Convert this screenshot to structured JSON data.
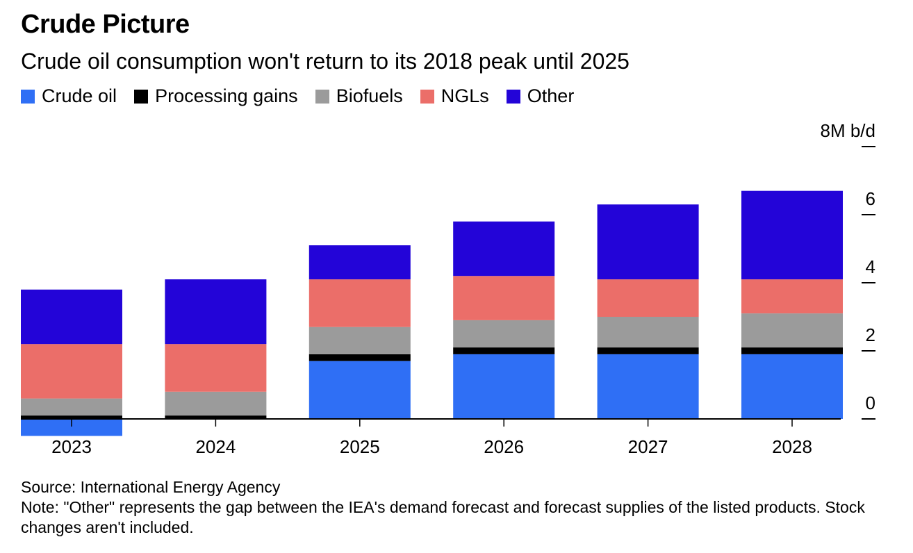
{
  "header": {
    "title": "Crude Picture",
    "subtitle": "Crude oil consumption won't return to its 2018 peak until 2025"
  },
  "legend": [
    {
      "label": "Crude oil",
      "color": "#2f6ff5"
    },
    {
      "label": "Processing gains",
      "color": "#000000"
    },
    {
      "label": "Biofuels",
      "color": "#9b9b9b"
    },
    {
      "label": "NGLs",
      "color": "#eb6e69"
    },
    {
      "label": "Other",
      "color": "#2304d8"
    }
  ],
  "footer": {
    "source": "Source: International Energy Agency",
    "note": "Note: \"Other\" represents the gap between the IEA's demand forecast and forecast supplies of the listed products. Stock changes aren't included."
  },
  "chart_data": {
    "type": "bar",
    "stacked": true,
    "categories": [
      "2023",
      "2024",
      "2025",
      "2026",
      "2027",
      "2028"
    ],
    "series": [
      {
        "name": "Crude oil",
        "color": "#2f6ff5",
        "values": [
          -0.5,
          0.0,
          1.7,
          1.9,
          1.9,
          1.9
        ]
      },
      {
        "name": "Processing gains",
        "color": "#000000",
        "values": [
          0.1,
          0.1,
          0.2,
          0.2,
          0.2,
          0.2
        ]
      },
      {
        "name": "Biofuels",
        "color": "#9b9b9b",
        "values": [
          0.5,
          0.7,
          0.8,
          0.8,
          0.9,
          1.0
        ]
      },
      {
        "name": "NGLs",
        "color": "#eb6e69",
        "values": [
          1.6,
          1.4,
          1.4,
          1.3,
          1.1,
          1.0
        ]
      },
      {
        "name": "Other",
        "color": "#2304d8",
        "values": [
          1.6,
          1.9,
          1.0,
          1.6,
          2.2,
          2.6
        ]
      }
    ],
    "yaxis": {
      "ticks": [
        {
          "value": 0,
          "label": "0"
        },
        {
          "value": 2,
          "label": "2"
        },
        {
          "value": 4,
          "label": "4"
        },
        {
          "value": 6,
          "label": "6"
        },
        {
          "value": 8,
          "label": "8M b/d"
        }
      ],
      "range": [
        -0.6,
        8
      ],
      "position": "right"
    },
    "grid": false
  }
}
